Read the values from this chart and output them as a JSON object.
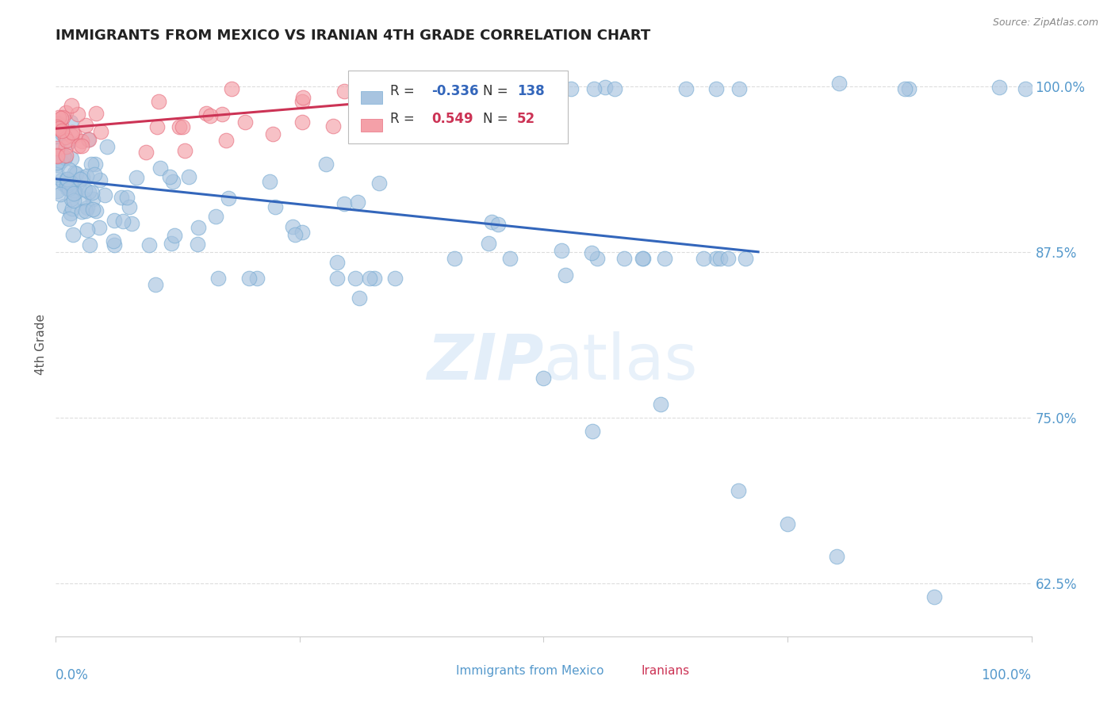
{
  "title": "IMMIGRANTS FROM MEXICO VS IRANIAN 4TH GRADE CORRELATION CHART",
  "source": "Source: ZipAtlas.com",
  "ylabel": "4th Grade",
  "yticks": [
    0.625,
    0.75,
    0.875,
    1.0
  ],
  "ytick_labels": [
    "62.5%",
    "75.0%",
    "87.5%",
    "100.0%"
  ],
  "legend_blue_label": "Immigrants from Mexico",
  "legend_pink_label": "Iranians",
  "blue_R": -0.336,
  "blue_N": 138,
  "pink_R": 0.549,
  "pink_N": 52,
  "blue_color": "#A8C4E0",
  "blue_edge_color": "#7AADD4",
  "pink_color": "#F4A0A8",
  "pink_edge_color": "#E87080",
  "blue_line_color": "#3366BB",
  "pink_line_color": "#CC3355",
  "background_color": "#ffffff",
  "grid_color": "#dddddd",
  "title_color": "#222222",
  "source_color": "#888888",
  "axis_label_color": "#5599CC",
  "ylabel_color": "#555555",
  "blue_line_x0": 0.0,
  "blue_line_x1": 0.72,
  "blue_line_y0": 0.93,
  "blue_line_y1": 0.875,
  "pink_line_x0": 0.0,
  "pink_line_x1": 0.36,
  "pink_line_y0": 0.968,
  "pink_line_y1": 0.99,
  "xlim": [
    0.0,
    1.0
  ],
  "ylim": [
    0.585,
    1.025
  ]
}
